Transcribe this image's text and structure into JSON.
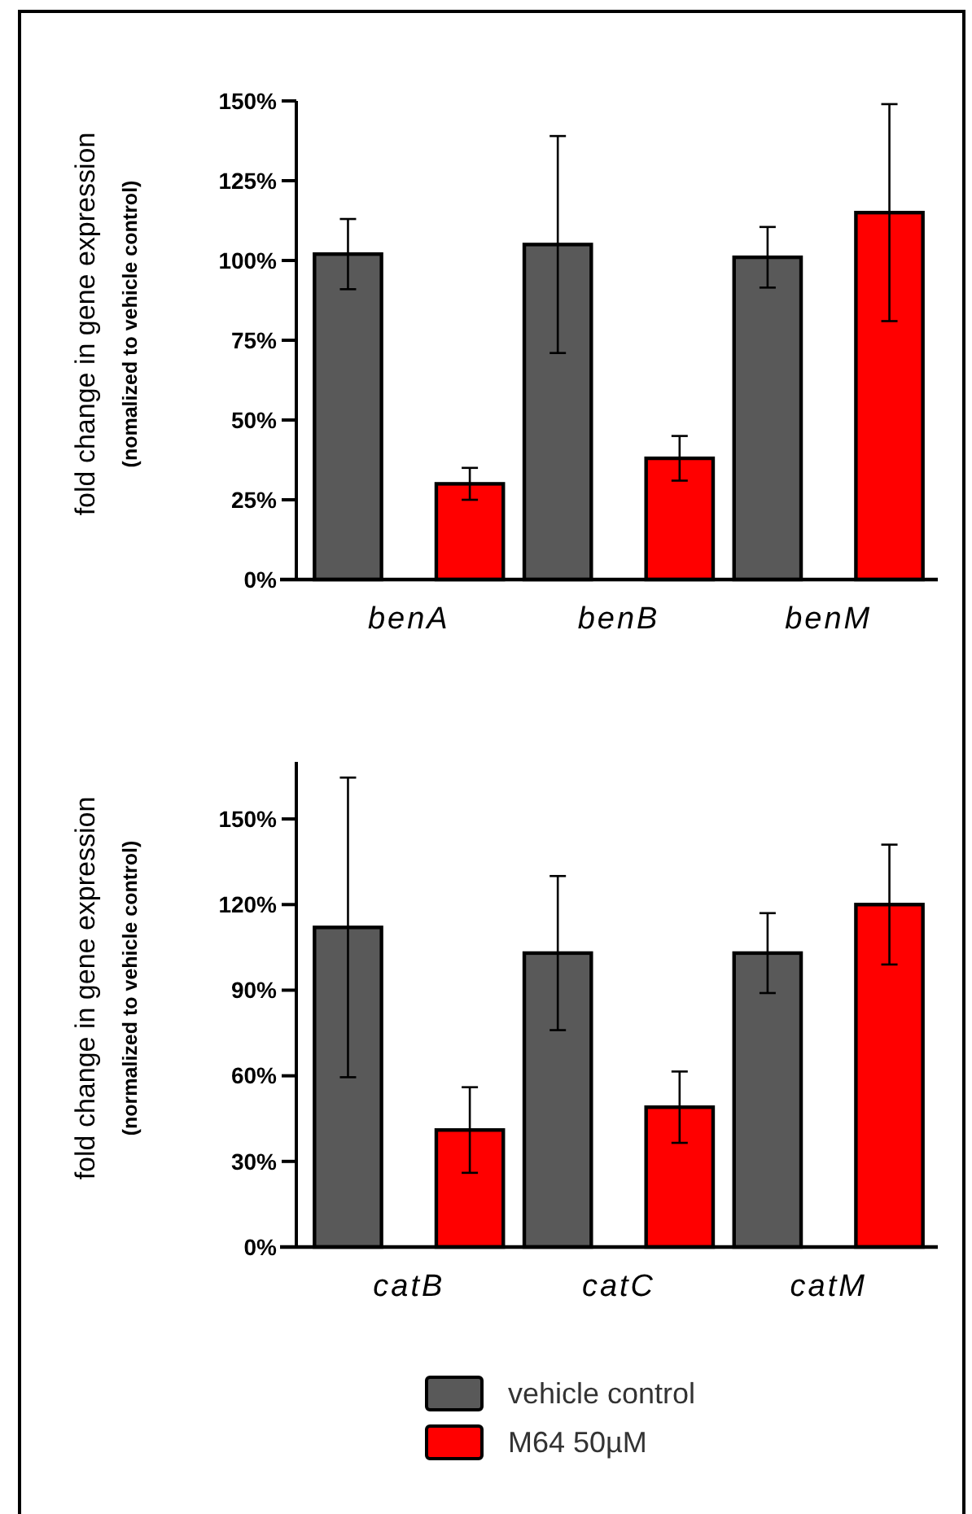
{
  "chart_data": [
    {
      "type": "bar",
      "ylabel": "fold change in gene expression\n(nomalized to vehicle control)",
      "categories": [
        "benA",
        "benB",
        "benM"
      ],
      "ylim": [
        0,
        150
      ],
      "yticks": [
        {
          "value": 0,
          "label": "0%"
        },
        {
          "value": 25,
          "label": "25%"
        },
        {
          "value": 50,
          "label": "50%"
        },
        {
          "value": 75,
          "label": "75%"
        },
        {
          "value": 100,
          "label": "100%"
        },
        {
          "value": 125,
          "label": "125%"
        },
        {
          "value": 150,
          "label": "150%"
        }
      ],
      "grid": false,
      "legend": false,
      "series": [
        {
          "color": "#595959",
          "values": [
            102,
            105,
            101
          ],
          "errors": [
            11,
            34,
            9.5
          ]
        },
        {
          "color": "#ff0000",
          "values": [
            30,
            38,
            115
          ],
          "errors": [
            5,
            7,
            34
          ]
        }
      ]
    },
    {
      "type": "bar",
      "ylabel": "fold change in gene expression\n(normalized to vehicle control)",
      "categories": [
        "catB",
        "catC",
        "catM"
      ],
      "ylim": [
        0,
        170
      ],
      "yticks": [
        {
          "value": 0,
          "label": "0%"
        },
        {
          "value": 30,
          "label": "30%"
        },
        {
          "value": 60,
          "label": "60%"
        },
        {
          "value": 90,
          "label": "90%"
        },
        {
          "value": 120,
          "label": "120%"
        },
        {
          "value": 150,
          "label": "150%"
        }
      ],
      "grid": false,
      "legend": "bottom",
      "series": [
        {
          "name": "vehicle control",
          "color": "#595959",
          "values": [
            112,
            103,
            103
          ],
          "errors": [
            52.5,
            27,
            14
          ]
        },
        {
          "name": "M64 50µM",
          "color": "#ff0000",
          "values": [
            41,
            49,
            120
          ],
          "errors": [
            15,
            12.5,
            21
          ]
        }
      ]
    }
  ]
}
